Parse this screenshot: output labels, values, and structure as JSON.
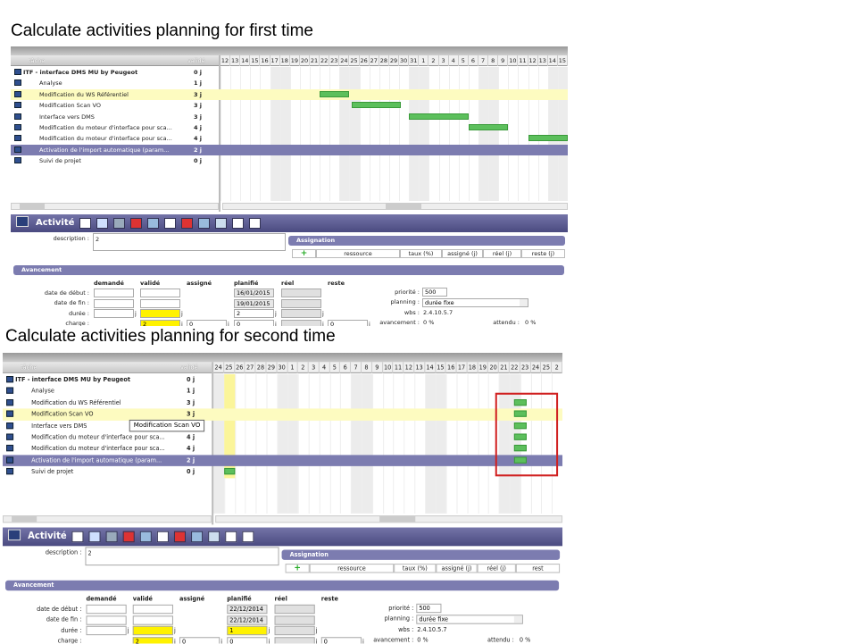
{
  "panels": [
    {
      "heading": "Calculate activities planning for first time",
      "columns": [
        "tâche",
        "validé"
      ],
      "days": [
        "12",
        "13",
        "14",
        "15",
        "16",
        "17",
        "18",
        "19",
        "20",
        "21",
        "22",
        "23",
        "24",
        "25",
        "26",
        "27",
        "28",
        "29",
        "30",
        "31",
        "1",
        "2",
        "3",
        "4",
        "5",
        "6",
        "7",
        "8",
        "9",
        "10",
        "11",
        "12",
        "13",
        "14",
        "15"
      ],
      "tasks": [
        {
          "name": "ITF - interface DMS MU by Peugeot",
          "value": "0 j"
        },
        {
          "name": "Analyse",
          "value": "1 j"
        },
        {
          "name": "Modification du WS Référentiel",
          "value": "3 j"
        },
        {
          "name": "Modification Scan VO",
          "value": "3 j"
        },
        {
          "name": "Interface vers DMS",
          "value": "3 j"
        },
        {
          "name": "Modification du moteur d'interface pour sca...",
          "value": "4 j"
        },
        {
          "name": "Modification du moteur d'interface pour sca...",
          "value": "4 j"
        },
        {
          "name": "Activation de l'import automatique (param...",
          "value": "2 j"
        },
        {
          "name": "Suivi de projet",
          "value": "0 j"
        }
      ],
      "activity": {
        "title": "Activité",
        "description_label": "description :",
        "description": "2"
      },
      "assignation": {
        "title": "Assignation",
        "add": "+",
        "columns": [
          "ressource",
          "taux (%)",
          "assigné (j)",
          "réel (j)",
          "reste (j)"
        ]
      },
      "avancement": {
        "title": "Avancement",
        "unit": "j",
        "columns": [
          "demandé",
          "validé",
          "assigné",
          "planifié",
          "réel",
          "reste"
        ],
        "rows": [
          {
            "label": "date de début :",
            "cells": [
              null,
              null,
              null,
              "16/01/2015",
              null,
              null
            ]
          },
          {
            "label": "date de fin :",
            "cells": [
              null,
              null,
              null,
              "19/01/2015",
              null,
              null
            ]
          },
          {
            "label": "durée :",
            "cells": [
              null,
              null,
              null,
              "2",
              null,
              null
            ]
          },
          {
            "label": "charge :",
            "cells": [
              null,
              "2",
              "0",
              "0",
              null,
              "0"
            ]
          }
        ],
        "fields": [
          {
            "label": "priorité :",
            "value": "500"
          },
          {
            "label": "planning :",
            "value": "durée fixe"
          },
          {
            "label": "wbs :",
            "value": "2.4.10.5.7"
          },
          {
            "label": "avancement :",
            "value": "0 %"
          }
        ],
        "extra": {
          "label": "attendu :",
          "value": "0 %"
        }
      }
    },
    {
      "heading": "Calculate activities planning for second time",
      "columns": [
        "tâche",
        "validé"
      ],
      "days": [
        "24",
        "25",
        "26",
        "27",
        "28",
        "29",
        "30",
        "1",
        "2",
        "3",
        "4",
        "5",
        "6",
        "7",
        "8",
        "9",
        "10",
        "11",
        "12",
        "13",
        "14",
        "15",
        "16",
        "17",
        "18",
        "19",
        "20",
        "21",
        "22",
        "23",
        "24",
        "25",
        "2"
      ],
      "tasks": [
        {
          "name": "ITF - interface DMS MU by Peugeot",
          "value": "0 j"
        },
        {
          "name": "Analyse",
          "value": "1 j"
        },
        {
          "name": "Modification du WS Référentiel",
          "value": "3 j"
        },
        {
          "name": "Modification Scan VO",
          "value": "3 j"
        },
        {
          "name": "Interface vers DMS",
          "value": "3 j"
        },
        {
          "name": "Modification du moteur d'interface pour sca...",
          "value": "4 j"
        },
        {
          "name": "Modification du moteur d'interface pour sca...",
          "value": "4 j"
        },
        {
          "name": "Activation de l'import automatique (param...",
          "value": "2 j"
        },
        {
          "name": "Suivi de projet",
          "value": "0 j"
        }
      ],
      "tooltip": "Modification Scan VO",
      "activity": {
        "title": "Activité",
        "description_label": "description :",
        "description": "2"
      },
      "assignation": {
        "title": "Assignation",
        "add": "+",
        "columns": [
          "ressource",
          "taux (%)",
          "assigné (j)",
          "réel (j)",
          "rest"
        ]
      },
      "avancement": {
        "title": "Avancement",
        "unit": "j",
        "columns": [
          "demandé",
          "validé",
          "assigné",
          "planifié",
          "réel",
          "reste"
        ],
        "rows": [
          {
            "label": "date de début :",
            "cells": [
              null,
              null,
              null,
              "22/12/2014",
              null,
              null
            ]
          },
          {
            "label": "date de fin :",
            "cells": [
              null,
              null,
              null,
              "22/12/2014",
              null,
              null
            ]
          },
          {
            "label": "durée :",
            "cells": [
              null,
              null,
              null,
              "1",
              null,
              null
            ]
          },
          {
            "label": "charge :",
            "cells": [
              null,
              "2",
              "0",
              "0",
              null,
              "0"
            ]
          }
        ],
        "fields": [
          {
            "label": "priorité :",
            "value": "500"
          },
          {
            "label": "planning :",
            "value": "durée fixe"
          },
          {
            "label": "wbs :",
            "value": "2.4.10.5.7"
          },
          {
            "label": "avancement :",
            "value": "0 %"
          }
        ],
        "extra": {
          "label": "attendu :",
          "value": "0 %"
        }
      }
    }
  ]
}
